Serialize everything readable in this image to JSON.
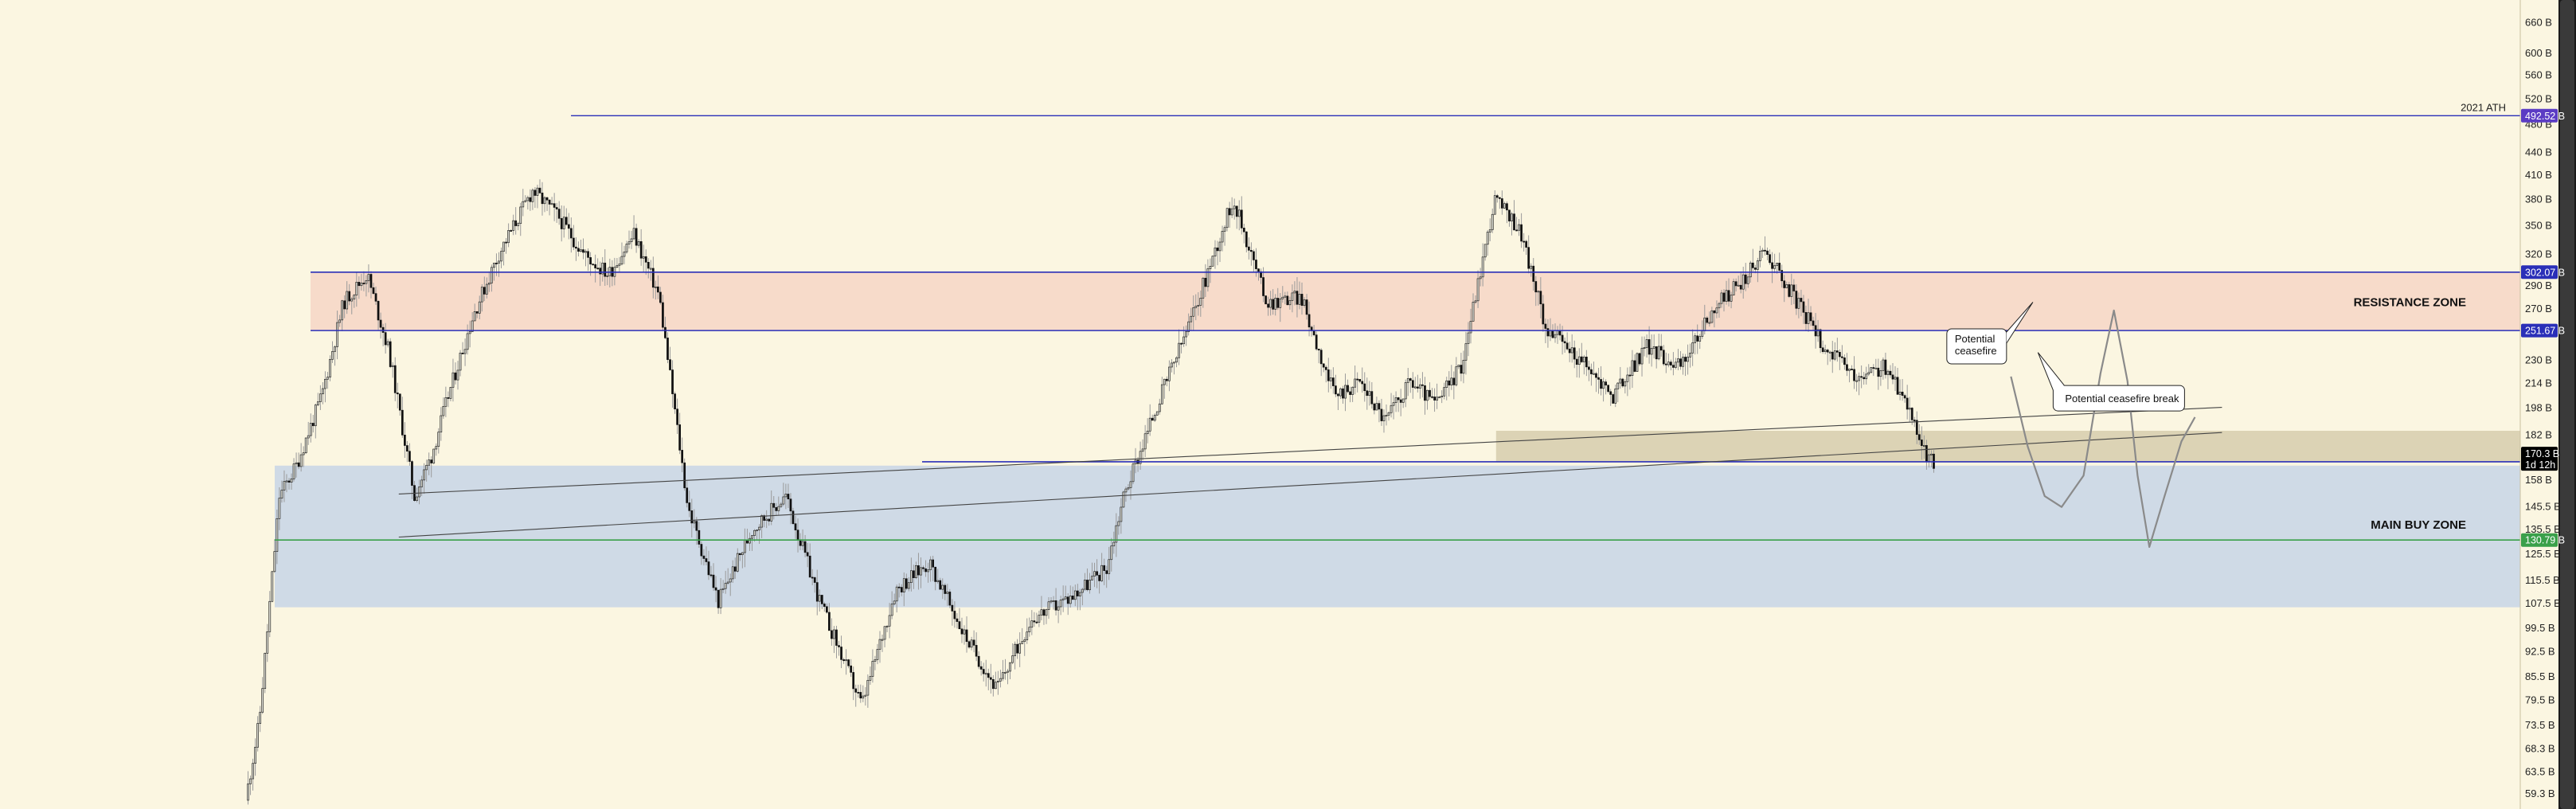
{
  "chart_data": {
    "type": "candlestick",
    "y_scale": "log",
    "ylim": [
      58,
      700
    ],
    "y_ticks": [
      "660 B",
      "600 B",
      "560 B",
      "520 B",
      "480 B",
      "440 B",
      "410 B",
      "380 B",
      "350 B",
      "320 B",
      "290 B",
      "270 B",
      "250 B",
      "230 B",
      "214 B",
      "198 B",
      "182 B",
      "170 B",
      "158 B",
      "145.5 B",
      "135.5 B",
      "125.5 B",
      "115.5 B",
      "107.5 B",
      "99.5 B",
      "92.5 B",
      "85.5 B",
      "79.5 B",
      "73.5 B",
      "68.3 B",
      "63.5 B",
      "59.3 B"
    ],
    "y_tick_values": [
      660,
      600,
      560,
      520,
      480,
      440,
      410,
      380,
      350,
      320,
      290,
      270,
      250,
      230,
      214,
      198,
      182,
      170,
      158,
      145.5,
      135.5,
      125.5,
      115.5,
      107.5,
      99.5,
      92.5,
      85.5,
      79.5,
      73.5,
      68.3,
      63.5,
      59.3
    ],
    "price_series_anchors": [
      [
        0.0,
        58
      ],
      [
        0.008,
        74
      ],
      [
        0.02,
        150
      ],
      [
        0.03,
        165
      ],
      [
        0.045,
        205
      ],
      [
        0.058,
        275
      ],
      [
        0.072,
        300
      ],
      [
        0.085,
        235
      ],
      [
        0.1,
        150
      ],
      [
        0.11,
        170
      ],
      [
        0.12,
        205
      ],
      [
        0.135,
        265
      ],
      [
        0.15,
        320
      ],
      [
        0.17,
        390
      ],
      [
        0.185,
        360
      ],
      [
        0.2,
        320
      ],
      [
        0.215,
        300
      ],
      [
        0.23,
        340
      ],
      [
        0.245,
        280
      ],
      [
        0.262,
        145
      ],
      [
        0.28,
        108
      ],
      [
        0.3,
        135
      ],
      [
        0.32,
        150
      ],
      [
        0.34,
        108
      ],
      [
        0.365,
        78
      ],
      [
        0.385,
        112
      ],
      [
        0.405,
        122
      ],
      [
        0.425,
        98
      ],
      [
        0.445,
        82
      ],
      [
        0.465,
        102
      ],
      [
        0.49,
        110
      ],
      [
        0.51,
        120
      ],
      [
        0.52,
        150
      ],
      [
        0.54,
        200
      ],
      [
        0.56,
        260
      ],
      [
        0.585,
        380
      ],
      [
        0.605,
        275
      ],
      [
        0.625,
        280
      ],
      [
        0.645,
        205
      ],
      [
        0.66,
        215
      ],
      [
        0.675,
        190
      ],
      [
        0.69,
        215
      ],
      [
        0.705,
        200
      ],
      [
        0.72,
        225
      ],
      [
        0.74,
        380
      ],
      [
        0.755,
        345
      ],
      [
        0.77,
        255
      ],
      [
        0.79,
        230
      ],
      [
        0.81,
        205
      ],
      [
        0.83,
        240
      ],
      [
        0.85,
        225
      ],
      [
        0.87,
        270
      ],
      [
        0.89,
        300
      ],
      [
        0.9,
        325
      ],
      [
        0.915,
        285
      ],
      [
        0.935,
        240
      ],
      [
        0.955,
        215
      ],
      [
        0.97,
        225
      ],
      [
        0.985,
        200
      ],
      [
        0.995,
        170
      ],
      [
        1.0,
        167
      ]
    ],
    "ath_price": 492.52,
    "ath_from_fraction": 0.192,
    "resistance_zone": {
      "upper": 302.07,
      "lower": 251.67
    },
    "support_line": 167,
    "support_line_start_fraction": 0.4,
    "green_line": 130.79,
    "main_buy_zone": {
      "upper": 165,
      "lower": 106
    },
    "tan_zone": {
      "upper": 184,
      "lower": 167,
      "start_fraction": 0.74
    },
    "trendlines": [
      {
        "from": [
          0.09,
          132
        ],
        "to": [
          1.17,
          183
        ]
      },
      {
        "from": [
          0.09,
          151
        ],
        "to": [
          1.17,
          198
        ]
      }
    ],
    "projection_path": [
      [
        1.045,
        218
      ],
      [
        1.055,
        175
      ],
      [
        1.065,
        150
      ],
      [
        1.075,
        145
      ],
      [
        1.088,
        160
      ],
      [
        1.098,
        220
      ],
      [
        1.106,
        268
      ],
      [
        1.114,
        215
      ],
      [
        1.12,
        160
      ],
      [
        1.127,
        128
      ],
      [
        1.136,
        150
      ],
      [
        1.146,
        178
      ],
      [
        1.154,
        192
      ]
    ],
    "legend": null
  },
  "badges": [
    {
      "id": "ath",
      "text": "492.52 B",
      "value": 492.52,
      "color": "#5b3cc4"
    },
    {
      "id": "res-upper",
      "text": "302.07 B",
      "value": 302.07,
      "color": "#2a2fb8"
    },
    {
      "id": "res-lower",
      "text": "251.67 B",
      "value": 251.67,
      "color": "#2a2fb8"
    },
    {
      "id": "current",
      "text": "170.3 B",
      "sub": "1d 12h",
      "value": 170.3,
      "color": "#000000"
    },
    {
      "id": "green",
      "text": "130.79 B",
      "value": 130.79,
      "color": "#3aa04a"
    }
  ],
  "labels": {
    "ath": "2021 ATH",
    "resistance_zone": "RESISTANCE ZONE",
    "main_buy_zone": "MAIN BUY ZONE"
  },
  "callouts": {
    "ceasefire": [
      "Potential",
      "ceasefire"
    ],
    "ceasefire_break": "Potential ceasefire break"
  },
  "colors": {
    "background": "#fbf6e1",
    "resistance_fill": "#f6d6c6",
    "buy_zone_fill": "#ccd8e6",
    "tan_fill": "#d8cfb0",
    "blue_line": "#2a2fb8",
    "green_line": "#3aa04a",
    "candle": "#111111",
    "wick": "#9a9a9a",
    "projection": "#8a8a8a"
  }
}
